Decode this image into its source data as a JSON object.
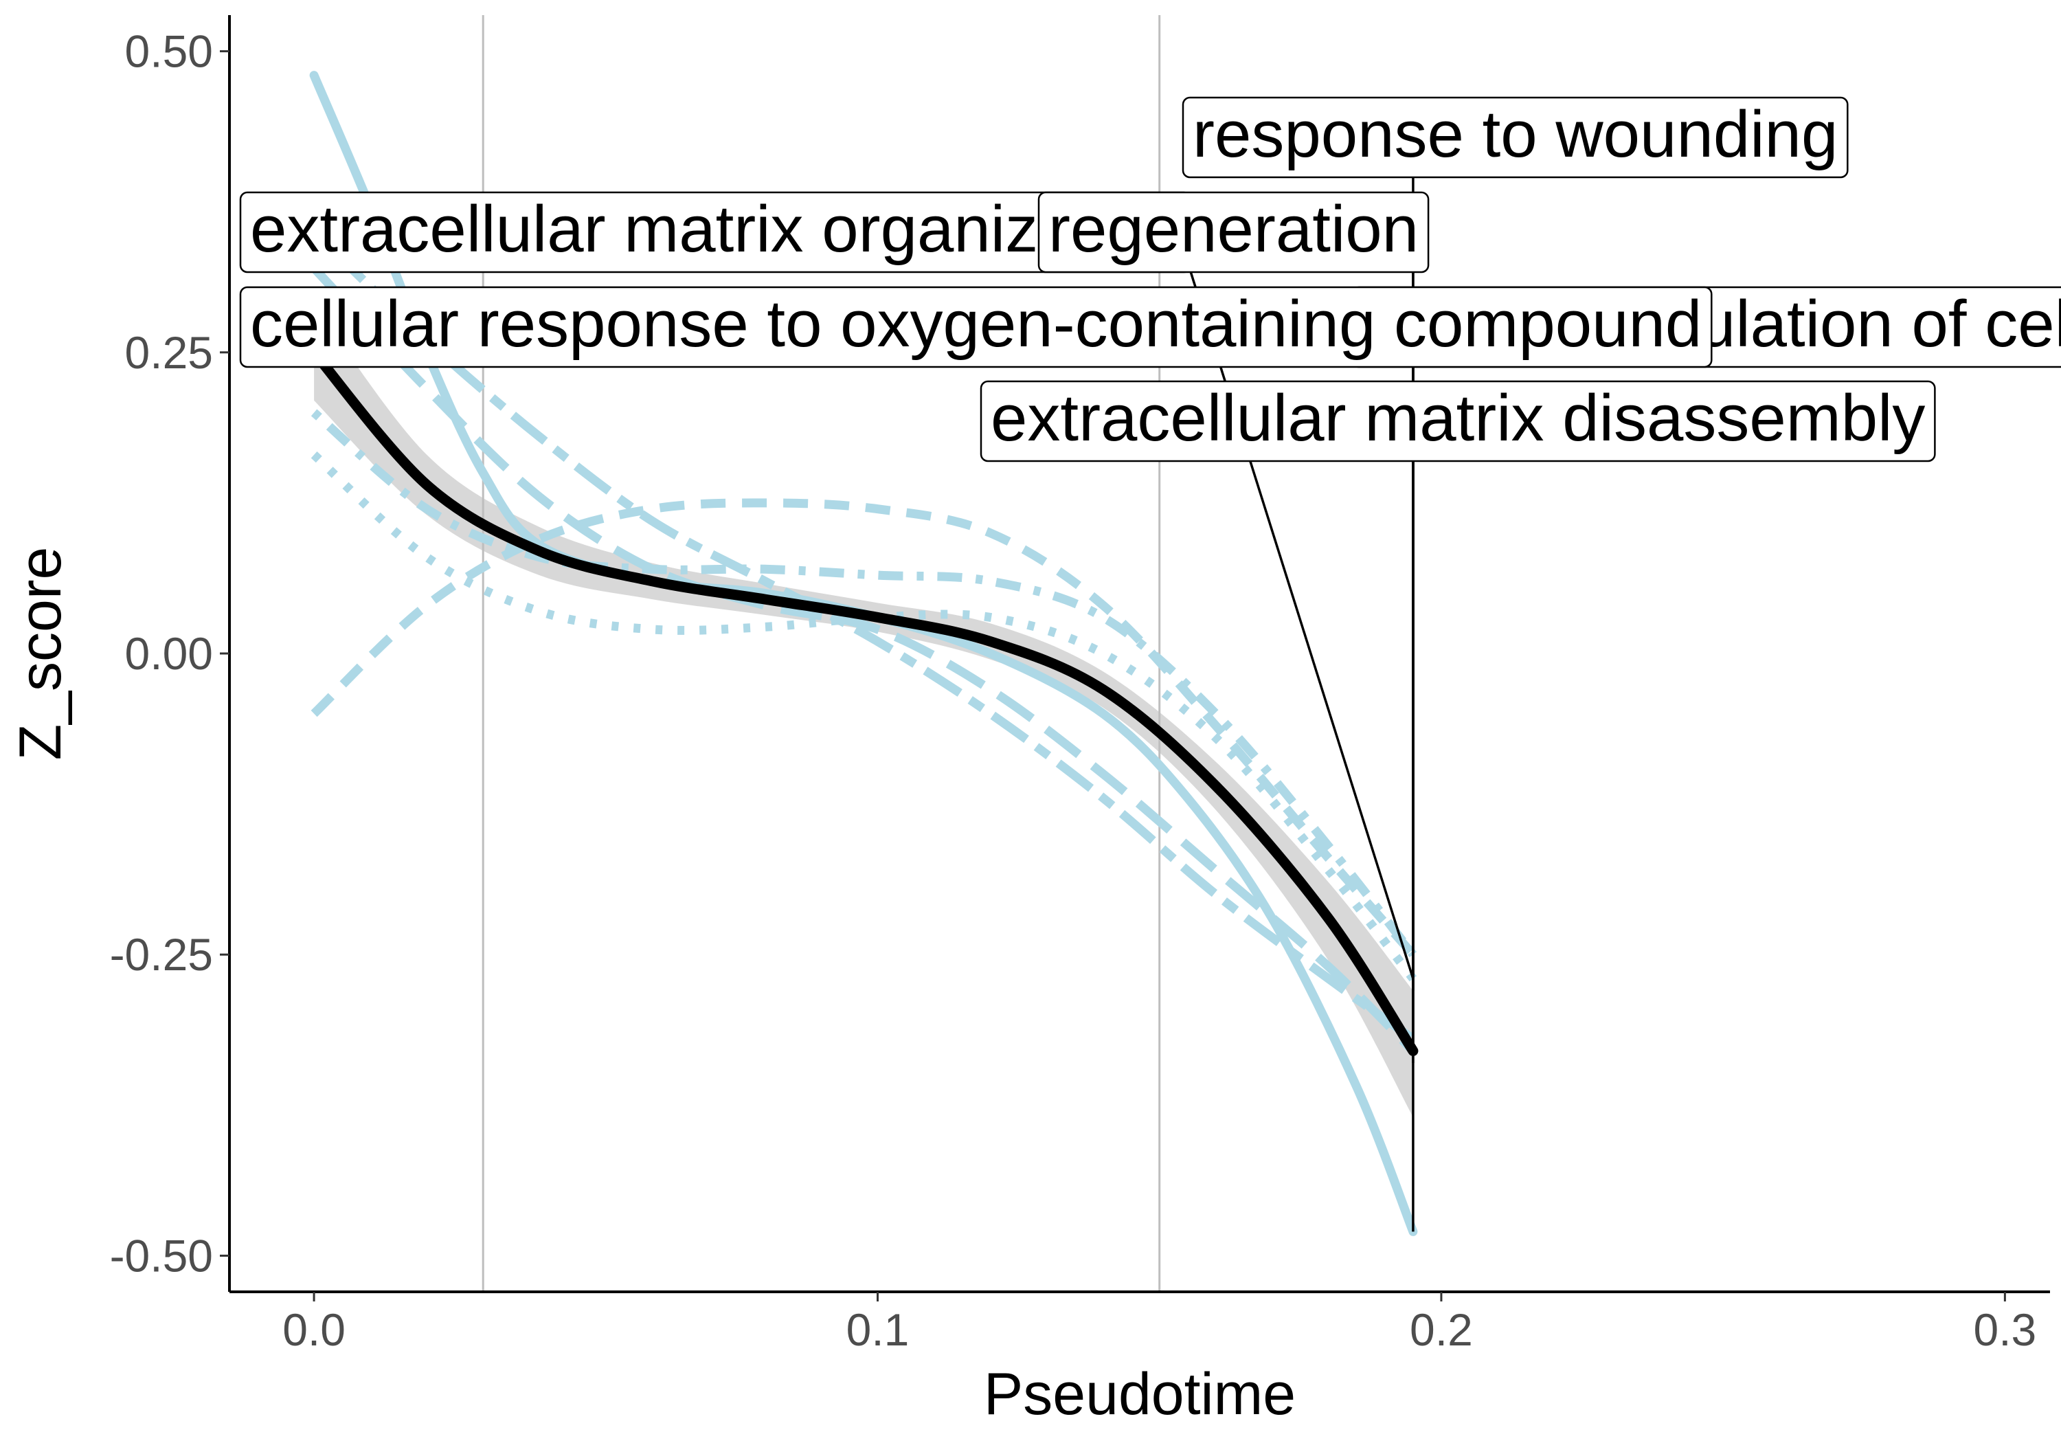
{
  "chart_data": {
    "type": "line",
    "title": "",
    "xlabel": "Pseudotime",
    "ylabel": "Z_score",
    "xlim": [
      -0.015,
      0.308
    ],
    "ylim": [
      -0.53,
      0.53
    ],
    "x_ticks": [
      0.0,
      0.1,
      0.2,
      0.3
    ],
    "x_tick_labels": [
      "0.0",
      "0.1",
      "0.2",
      "0.3"
    ],
    "y_ticks": [
      0.5,
      0.25,
      0.0,
      -0.25,
      -0.5
    ],
    "y_tick_labels": [
      "0.50",
      "0.25",
      "0.00",
      "-0.25",
      "-0.50"
    ],
    "vlines": [
      0.03,
      0.15
    ],
    "grid": false,
    "colors": {
      "series": "#add8e6",
      "mean": "#000000",
      "ribbon": "#bebebe",
      "vline": "#bebebe",
      "axis": "#000000"
    },
    "series": [
      {
        "dash": "solid",
        "x": [
          0.0,
          0.01,
          0.02,
          0.03,
          0.04,
          0.06,
          0.08,
          0.1,
          0.12,
          0.14,
          0.155,
          0.17,
          0.185,
          0.195
        ],
        "y": [
          0.48,
          0.37,
          0.25,
          0.15,
          0.09,
          0.06,
          0.05,
          0.03,
          0.0,
          -0.05,
          -0.12,
          -0.22,
          -0.36,
          -0.48
        ]
      },
      {
        "dash": "dashed",
        "x": [
          0.0,
          0.02,
          0.04,
          0.06,
          0.08,
          0.1,
          0.12,
          0.14,
          0.16,
          0.18,
          0.195
        ],
        "y": [
          -0.05,
          0.04,
          0.095,
          0.12,
          0.125,
          0.12,
          0.1,
          0.04,
          -0.06,
          -0.17,
          -0.25
        ]
      },
      {
        "dash": "dotted",
        "x": [
          0.0,
          0.02,
          0.04,
          0.06,
          0.08,
          0.1,
          0.12,
          0.14,
          0.16,
          0.18,
          0.195
        ],
        "y": [
          0.165,
          0.08,
          0.035,
          0.02,
          0.022,
          0.03,
          0.03,
          0.0,
          -0.07,
          -0.18,
          -0.27
        ]
      },
      {
        "dash": "dotdash",
        "x": [
          0.0,
          0.02,
          0.04,
          0.06,
          0.08,
          0.1,
          0.12,
          0.14,
          0.16,
          0.18,
          0.195
        ],
        "y": [
          0.2,
          0.12,
          0.08,
          0.07,
          0.07,
          0.065,
          0.06,
          0.03,
          -0.05,
          -0.16,
          -0.25
        ]
      },
      {
        "dash": "longdash",
        "x": [
          0.0,
          0.02,
          0.04,
          0.06,
          0.08,
          0.1,
          0.12,
          0.14,
          0.16,
          0.18,
          0.195
        ],
        "y": [
          0.32,
          0.22,
          0.13,
          0.07,
          0.04,
          0.02,
          -0.03,
          -0.1,
          -0.18,
          -0.26,
          -0.33
        ]
      },
      {
        "dash": "twodash",
        "x": [
          0.0,
          0.02,
          0.04,
          0.06,
          0.08,
          0.1,
          0.12,
          0.14,
          0.16,
          0.18,
          0.195
        ],
        "y": [
          0.35,
          0.26,
          0.18,
          0.11,
          0.06,
          0.01,
          -0.05,
          -0.12,
          -0.2,
          -0.27,
          -0.32
        ]
      }
    ],
    "mean": {
      "x": [
        0.0,
        0.02,
        0.04,
        0.06,
        0.08,
        0.1,
        0.12,
        0.14,
        0.16,
        0.18,
        0.195
      ],
      "y": [
        0.25,
        0.14,
        0.085,
        0.06,
        0.045,
        0.03,
        0.01,
        -0.03,
        -0.11,
        -0.22,
        -0.33
      ],
      "ymin": [
        0.21,
        0.115,
        0.065,
        0.045,
        0.032,
        0.018,
        -0.005,
        -0.045,
        -0.13,
        -0.255,
        -0.385
      ],
      "ymax": [
        0.29,
        0.165,
        0.105,
        0.075,
        0.058,
        0.042,
        0.025,
        -0.015,
        -0.09,
        -0.19,
        -0.28
      ]
    },
    "labels": [
      {
        "text": "response to wounding",
        "anchor": [
          0.195,
          -0.28
        ]
      },
      {
        "text": "extracellular matrix organization",
        "anchor": [
          0.195,
          -0.27
        ]
      },
      {
        "text": "regeneration",
        "anchor": [
          0.195,
          -0.24
        ]
      },
      {
        "text": "positive regulation of cell migration",
        "anchor": [
          0.195,
          -0.34
        ]
      },
      {
        "text": "cellular response to oxygen-containing compound",
        "anchor": [
          0.195,
          -0.33
        ]
      },
      {
        "text": "extracellular matrix disassembly",
        "anchor": [
          0.195,
          -0.48
        ]
      }
    ]
  }
}
